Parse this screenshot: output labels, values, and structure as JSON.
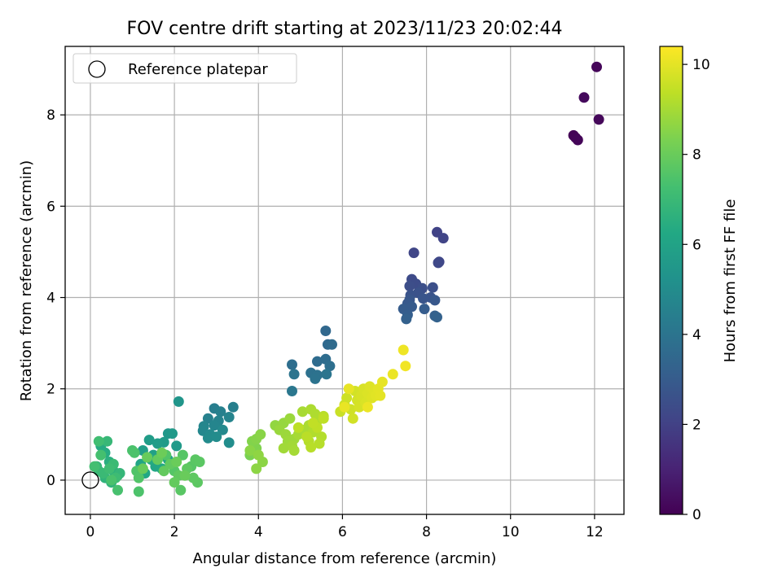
{
  "chart_data": {
    "type": "scatter",
    "title": "FOV centre drift starting at 2023/11/23 20:02:44",
    "xlabel": "Angular distance from reference (arcmin)",
    "ylabel": "Rotation from reference (arcmin)",
    "xlim": [
      -0.6,
      12.7
    ],
    "ylim": [
      -0.75,
      9.5
    ],
    "x_ticks": [
      0,
      2,
      4,
      6,
      8,
      10,
      12
    ],
    "y_ticks": [
      0,
      2,
      4,
      6,
      8
    ],
    "grid": true,
    "legend": {
      "location": "upper-left",
      "entries": [
        {
          "label": "Reference platepar",
          "marker": "open-circle",
          "x": 0,
          "y": 0
        }
      ]
    },
    "colorbar": {
      "label": "Hours from first FF file",
      "colormap": "viridis",
      "range": [
        0,
        10.4
      ],
      "ticks": [
        0,
        2,
        4,
        6,
        8,
        10
      ]
    },
    "columns": [
      "x",
      "y",
      "hours"
    ],
    "points": [
      [
        11.5,
        7.55,
        0.05
      ],
      [
        11.55,
        7.5,
        0.1
      ],
      [
        11.6,
        7.45,
        0.12
      ],
      [
        12.05,
        9.05,
        0.15
      ],
      [
        12.1,
        7.9,
        0.2
      ],
      [
        11.75,
        8.38,
        0.25
      ],
      [
        8.25,
        5.43,
        2.05
      ],
      [
        8.4,
        5.3,
        2.1
      ],
      [
        7.7,
        4.98,
        2.15
      ],
      [
        8.3,
        4.78,
        2.2
      ],
      [
        8.28,
        4.76,
        2.25
      ],
      [
        7.65,
        4.4,
        2.35
      ],
      [
        7.75,
        4.3,
        2.4
      ],
      [
        7.6,
        4.25,
        2.45
      ],
      [
        7.9,
        4.2,
        2.5
      ],
      [
        8.15,
        4.22,
        2.55
      ],
      [
        7.8,
        4.1,
        2.6
      ],
      [
        7.62,
        4.05,
        2.65
      ],
      [
        8.1,
        4.0,
        2.7
      ],
      [
        7.92,
        3.98,
        2.75
      ],
      [
        7.6,
        3.95,
        2.8
      ],
      [
        8.2,
        3.94,
        2.85
      ],
      [
        7.55,
        3.87,
        2.9
      ],
      [
        7.65,
        3.8,
        2.95
      ],
      [
        7.45,
        3.75,
        3.0
      ],
      [
        7.95,
        3.75,
        3.05
      ],
      [
        7.55,
        3.62,
        3.1
      ],
      [
        8.2,
        3.6,
        3.15
      ],
      [
        7.52,
        3.53,
        3.2
      ],
      [
        8.25,
        3.57,
        3.25
      ],
      [
        5.6,
        3.27,
        3.5
      ],
      [
        5.65,
        2.97,
        3.55
      ],
      [
        5.75,
        2.97,
        3.6
      ],
      [
        5.4,
        2.6,
        3.65
      ],
      [
        5.6,
        2.65,
        3.7
      ],
      [
        4.8,
        2.53,
        3.75
      ],
      [
        5.7,
        2.5,
        3.8
      ],
      [
        5.25,
        2.35,
        3.85
      ],
      [
        5.4,
        2.3,
        3.9
      ],
      [
        5.35,
        2.22,
        3.95
      ],
      [
        4.85,
        2.32,
        4.0
      ],
      [
        5.62,
        2.32,
        4.05
      ],
      [
        4.8,
        1.95,
        4.1
      ],
      [
        2.95,
        1.57,
        4.4
      ],
      [
        3.4,
        1.6,
        4.45
      ],
      [
        3.1,
        1.5,
        4.5
      ],
      [
        2.8,
        1.35,
        4.55
      ],
      [
        3.05,
        1.3,
        4.6
      ],
      [
        3.3,
        1.38,
        4.65
      ],
      [
        2.95,
        1.2,
        4.7
      ],
      [
        2.7,
        1.18,
        4.75
      ],
      [
        2.68,
        1.08,
        4.8
      ],
      [
        3.15,
        1.1,
        4.85
      ],
      [
        2.85,
        1.0,
        4.9
      ],
      [
        2.8,
        0.92,
        4.95
      ],
      [
        3.0,
        0.95,
        5.0
      ],
      [
        3.3,
        0.82,
        5.05
      ],
      [
        2.1,
        1.72,
        5.4
      ],
      [
        1.85,
        1.02,
        5.5
      ],
      [
        1.95,
        1.02,
        5.55
      ],
      [
        2.05,
        0.75,
        5.6
      ],
      [
        1.75,
        0.83,
        5.65
      ],
      [
        1.4,
        0.88,
        5.7
      ],
      [
        1.6,
        0.8,
        5.75
      ],
      [
        1.25,
        0.65,
        5.8
      ],
      [
        1.5,
        0.55,
        5.9
      ],
      [
        1.85,
        0.45,
        6.0
      ],
      [
        1.2,
        0.35,
        6.1
      ],
      [
        1.55,
        0.3,
        6.15
      ],
      [
        1.3,
        0.15,
        6.2
      ],
      [
        1.7,
        0.25,
        6.25
      ],
      [
        1.45,
        0.45,
        6.3
      ],
      [
        0.25,
        0.75,
        6.35
      ],
      [
        0.35,
        0.6,
        6.4
      ],
      [
        0.45,
        0.4,
        6.5
      ],
      [
        0.55,
        0.2,
        6.6
      ],
      [
        0.65,
        0.1,
        6.65
      ],
      [
        0.35,
        0.05,
        6.7
      ],
      [
        0.5,
        -0.05,
        6.75
      ],
      [
        0.15,
        0.3,
        6.8
      ],
      [
        0.7,
        0.15,
        6.85
      ],
      [
        0.4,
        0.85,
        6.9
      ],
      [
        0.2,
        0.2,
        6.95
      ],
      [
        0.3,
        0.15,
        7.0
      ],
      [
        0.55,
        0.35,
        7.05
      ],
      [
        0.6,
        0.05,
        7.1
      ],
      [
        0.45,
        0.25,
        7.15
      ],
      [
        0.2,
        0.85,
        7.2
      ],
      [
        0.1,
        0.3,
        7.25
      ],
      [
        0.25,
        0.55,
        7.3
      ],
      [
        0.65,
        -0.22,
        7.35
      ],
      [
        0.5,
        0.0,
        7.4
      ],
      [
        1.15,
        -0.25,
        7.45
      ],
      [
        1.0,
        0.65,
        7.4
      ],
      [
        1.05,
        0.6,
        7.45
      ],
      [
        1.1,
        0.2,
        7.5
      ],
      [
        1.15,
        0.05,
        7.55
      ],
      [
        1.8,
        0.55,
        7.55
      ],
      [
        2.0,
        0.2,
        7.6
      ],
      [
        2.2,
        0.55,
        7.62
      ],
      [
        2.4,
        0.3,
        7.65
      ],
      [
        2.15,
        -0.22,
        7.68
      ],
      [
        2.5,
        0.45,
        7.7
      ],
      [
        2.6,
        0.4,
        7.72
      ],
      [
        2.55,
        -0.05,
        7.75
      ],
      [
        2.45,
        0.05,
        7.78
      ],
      [
        2.3,
        0.25,
        7.8
      ],
      [
        2.1,
        0.1,
        7.82
      ],
      [
        1.9,
        0.35,
        7.85
      ],
      [
        1.75,
        0.2,
        7.88
      ],
      [
        2.0,
        -0.05,
        7.9
      ],
      [
        1.6,
        0.45,
        7.92
      ],
      [
        1.35,
        0.5,
        7.95
      ],
      [
        1.25,
        0.25,
        7.98
      ],
      [
        2.25,
        0.1,
        8.0
      ],
      [
        2.05,
        0.4,
        8.02
      ],
      [
        1.7,
        0.6,
        8.05
      ],
      [
        3.8,
        0.55,
        8.3
      ],
      [
        3.9,
        0.6,
        8.35
      ],
      [
        3.95,
        0.7,
        8.4
      ],
      [
        3.85,
        0.85,
        8.45
      ],
      [
        3.95,
        0.9,
        8.5
      ],
      [
        4.05,
        1.0,
        8.55
      ],
      [
        3.8,
        0.65,
        8.58
      ],
      [
        4.1,
        0.4,
        8.6
      ],
      [
        3.95,
        0.25,
        8.62
      ],
      [
        4.0,
        0.55,
        8.65
      ],
      [
        4.4,
        1.2,
        8.7
      ],
      [
        4.6,
        1.25,
        8.75
      ],
      [
        4.5,
        1.1,
        8.8
      ],
      [
        4.75,
        1.35,
        8.82
      ],
      [
        4.65,
        1.0,
        8.85
      ],
      [
        4.7,
        0.85,
        8.88
      ],
      [
        4.85,
        0.9,
        8.9
      ],
      [
        4.6,
        0.7,
        8.92
      ],
      [
        4.8,
        0.75,
        8.95
      ],
      [
        4.85,
        0.65,
        8.98
      ],
      [
        4.95,
        1.0,
        9.0
      ],
      [
        5.05,
        1.5,
        9.02
      ],
      [
        5.1,
        1.1,
        9.05
      ],
      [
        5.2,
        1.2,
        9.08
      ],
      [
        5.25,
        1.55,
        9.1
      ],
      [
        5.35,
        1.45,
        9.12
      ],
      [
        5.4,
        1.3,
        9.15
      ],
      [
        5.3,
        1.05,
        9.18
      ],
      [
        5.5,
        0.95,
        9.2
      ],
      [
        5.2,
        0.85,
        9.22
      ],
      [
        5.45,
        0.8,
        9.25
      ],
      [
        5.25,
        0.72,
        9.28
      ],
      [
        5.55,
        1.4,
        9.3
      ],
      [
        5.15,
        0.95,
        9.32
      ],
      [
        4.95,
        1.15,
        9.35
      ],
      [
        5.55,
        1.35,
        9.38
      ],
      [
        5.4,
        1.15,
        9.4
      ],
      [
        5.3,
        1.25,
        9.42
      ],
      [
        5.95,
        1.5,
        9.55
      ],
      [
        6.05,
        1.65,
        9.6
      ],
      [
        6.1,
        1.8,
        9.62
      ],
      [
        6.2,
        1.55,
        9.65
      ],
      [
        6.25,
        1.35,
        9.68
      ],
      [
        6.3,
        1.95,
        9.7
      ],
      [
        6.35,
        1.75,
        9.72
      ],
      [
        6.4,
        1.6,
        9.75
      ],
      [
        6.45,
        1.85,
        9.78
      ],
      [
        6.5,
        2.0,
        9.8
      ],
      [
        6.55,
        1.7,
        9.82
      ],
      [
        6.6,
        1.9,
        9.85
      ],
      [
        6.65,
        2.05,
        9.88
      ],
      [
        6.7,
        1.8,
        9.9
      ],
      [
        6.75,
        1.95,
        9.92
      ],
      [
        6.8,
        1.85,
        9.95
      ],
      [
        6.85,
        2.0,
        9.98
      ],
      [
        6.9,
        1.85,
        10.0
      ],
      [
        6.95,
        2.15,
        10.02
      ],
      [
        6.15,
        2.0,
        10.05
      ],
      [
        6.05,
        1.6,
        10.08
      ],
      [
        7.2,
        2.32,
        10.1
      ],
      [
        7.45,
        2.85,
        10.15
      ],
      [
        7.5,
        2.5,
        10.2
      ],
      [
        6.6,
        1.6,
        10.12
      ]
    ]
  }
}
